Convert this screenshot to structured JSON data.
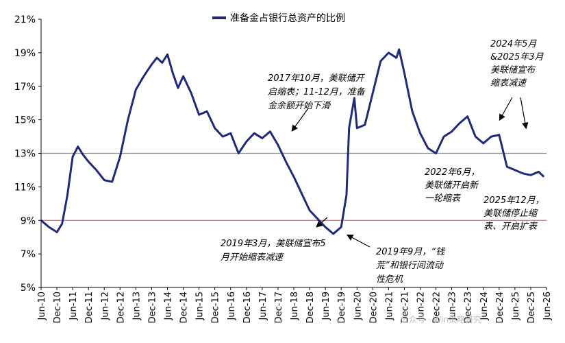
{
  "watermark": "公众号 · Win策略研究",
  "chart_data": {
    "type": "line",
    "title": "",
    "xlabel": "",
    "ylabel": "",
    "ylim": [
      5,
      21
    ],
    "yticks": [
      "5%",
      "7%",
      "9%",
      "11%",
      "13%",
      "15%",
      "17%",
      "19%",
      "21%"
    ],
    "x_start": "2010-06",
    "x_end": "2026-06",
    "x_tick_labels": [
      "Jun-10",
      "Dec-10",
      "Jun-11",
      "Dec-11",
      "Jun-12",
      "Dec-12",
      "Jun-13",
      "Dec-13",
      "Jun-14",
      "Dec-14",
      "Jun-15",
      "Dec-15",
      "Jun-16",
      "Dec-16",
      "Jun-17",
      "Dec-17",
      "Jun-18",
      "Dec-18",
      "Jun-19",
      "Dec-19",
      "Jun-20",
      "Dec-20",
      "Jun-21",
      "Dec-21",
      "Jun-22",
      "Dec-22",
      "Jun-23",
      "Dec-23",
      "Jun-24",
      "Dec-24",
      "Jun-25",
      "Dec-25",
      "Jun-26"
    ],
    "legend_position": "top",
    "reference_lines": [
      {
        "y": 13,
        "color": "#8c8c8c"
      },
      {
        "y": 9,
        "color": "#e06666"
      }
    ],
    "series": [
      {
        "name": "准备金占银行总资产的比例",
        "color": "#1f2a78",
        "x": [
          "2010-06",
          "2010-09",
          "2010-12",
          "2011-02",
          "2011-04",
          "2011-06",
          "2011-08",
          "2011-10",
          "2011-12",
          "2012-03",
          "2012-06",
          "2012-09",
          "2012-12",
          "2013-03",
          "2013-06",
          "2013-09",
          "2013-12",
          "2014-02",
          "2014-04",
          "2014-06",
          "2014-08",
          "2014-10",
          "2014-12",
          "2015-03",
          "2015-06",
          "2015-09",
          "2015-12",
          "2016-03",
          "2016-06",
          "2016-09",
          "2016-12",
          "2017-03",
          "2017-06",
          "2017-09",
          "2017-12",
          "2018-03",
          "2018-06",
          "2018-09",
          "2018-12",
          "2019-03",
          "2019-06",
          "2019-09",
          "2019-12",
          "2020-02",
          "2020-03",
          "2020-05",
          "2020-06",
          "2020-09",
          "2020-12",
          "2021-03",
          "2021-06",
          "2021-09",
          "2021-10",
          "2021-12",
          "2022-03",
          "2022-06",
          "2022-09",
          "2022-12",
          "2023-03",
          "2023-06",
          "2023-09",
          "2023-12",
          "2024-03",
          "2024-06",
          "2024-09",
          "2024-12",
          "2025-03",
          "2025-06",
          "2025-09",
          "2025-12",
          "2026-03",
          "2026-05"
        ],
        "values": [
          9.0,
          8.6,
          8.3,
          8.8,
          10.5,
          12.8,
          13.4,
          12.9,
          12.5,
          12.0,
          11.4,
          11.3,
          12.8,
          15.0,
          16.8,
          17.6,
          18.3,
          18.7,
          18.4,
          18.9,
          17.8,
          16.9,
          17.6,
          16.6,
          15.3,
          15.5,
          14.5,
          14.0,
          14.2,
          13.0,
          13.7,
          14.2,
          13.9,
          14.3,
          13.5,
          12.5,
          11.6,
          10.6,
          9.6,
          9.1,
          8.6,
          8.2,
          8.6,
          10.5,
          14.5,
          16.3,
          14.5,
          14.7,
          16.6,
          18.5,
          19.0,
          18.7,
          19.2,
          17.8,
          15.5,
          14.2,
          13.3,
          13.0,
          14.0,
          14.3,
          14.8,
          15.2,
          14.0,
          13.6,
          14.0,
          14.1,
          12.2,
          12.0,
          11.8,
          11.7,
          11.9,
          11.6
        ]
      }
    ],
    "annotations": [
      {
        "id": "a2017",
        "lines": [
          "2017年10月，美联储开",
          "启缩表；11-12月，准备",
          "金余额开始下滑"
        ]
      },
      {
        "id": "a2024",
        "lines": [
          "2024年5月",
          "&2025年3月",
          "美联储宣布",
          "缩表减速"
        ]
      },
      {
        "id": "a2022",
        "lines": [
          "2022年6月，",
          "美联储开启新",
          "一轮缩表"
        ]
      },
      {
        "id": "a2025",
        "lines": [
          "2025年12月，",
          "美联储停止缩",
          "表、开启扩表"
        ]
      },
      {
        "id": "a2019a",
        "lines": [
          "2019年3月，美联储宣布5",
          "月开始缩表减速"
        ]
      },
      {
        "id": "a2019b",
        "lines": [
          "2019年9月，“钱",
          "荒”和银行间流动",
          "性危机"
        ]
      }
    ]
  }
}
